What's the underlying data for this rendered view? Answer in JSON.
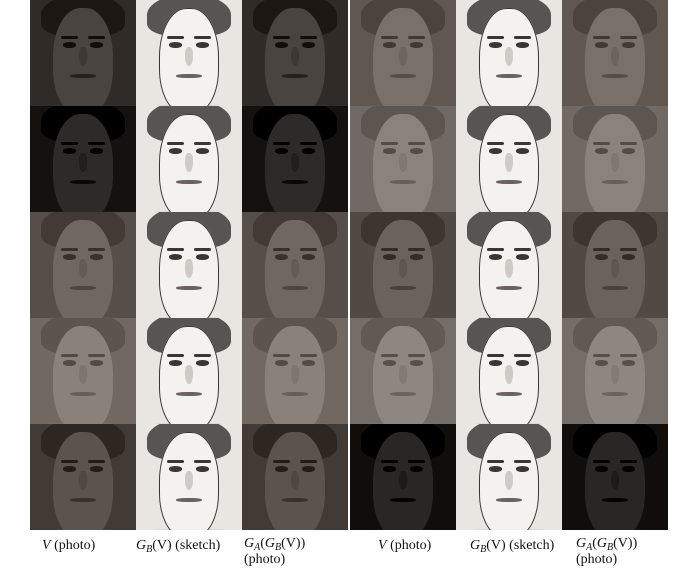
{
  "columns": [
    {
      "caption": "V (photo)",
      "kind": "photo-1"
    },
    {
      "caption": "G_B(V) (sketch)",
      "kind": "sketch-1"
    },
    {
      "caption": "G_A(G_B(V)) (photo)",
      "kind": "recon-1"
    },
    {
      "caption": "V (photo)",
      "kind": "photo-2"
    },
    {
      "caption": "G_B(V) (sketch)",
      "kind": "sketch-2"
    },
    {
      "caption": "G_A(G_B(V)) (photo)",
      "kind": "recon-2"
    }
  ],
  "captions": {
    "photo_var": "V",
    "photo_word": "(photo)",
    "sketch_G": "G",
    "sketch_sub": "B",
    "sketch_arg": "(V)",
    "sketch_word": "(sketch)",
    "recon_G": "G",
    "recon_sub": "A",
    "recon_inner_G": "G",
    "recon_inner_sub": "B",
    "recon_tail": "(V))",
    "recon_word": "(photo)"
  },
  "rows": [
    {
      "left_tone": "#4a4440",
      "right_tone": "#7a706a"
    },
    {
      "left_tone": "#2e2a28",
      "right_tone": "#8a827c"
    },
    {
      "left_tone": "#6f6862",
      "right_tone": "#6a625d"
    },
    {
      "left_tone": "#8a827a",
      "right_tone": "#8e8680"
    },
    {
      "left_tone": "#5a534e",
      "right_tone": "#2a2624"
    }
  ],
  "colors": {
    "sketch_bg": "#e9e6e2",
    "sketch_line": "#3a3633"
  }
}
